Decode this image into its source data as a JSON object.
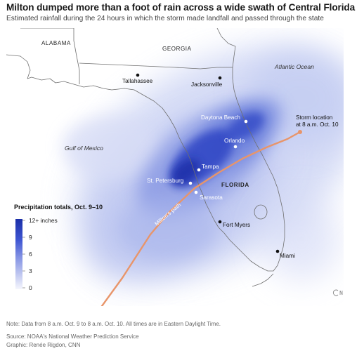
{
  "header": {
    "title": "Milton dumped more than a foot of rain across a wide swath of Central Florida",
    "subtitle": "Estimated rainfall during the 24 hours in which the storm made landfall and passed through the state"
  },
  "map_labels": {
    "states": [
      "ALABAMA",
      "GEORGIA",
      "FLORIDA"
    ],
    "water": [
      "Atlantic Ocean",
      "Gulf of Mexico"
    ],
    "cities": [
      "Tallahassee",
      "Jacksonville",
      "Daytona Beach",
      "Orlando",
      "Tampa",
      "St. Petersburg",
      "Sarasota",
      "Fort Myers",
      "Miami"
    ],
    "storm_path": "Milton's path",
    "storm_location_line1": "Storm location",
    "storm_location_line2": "at 8 a.m. Oct. 10"
  },
  "legend": {
    "title": "Precipitation totals, Oct. 9–10",
    "ticks": [
      "12+ inches",
      "9",
      "6",
      "3",
      "0"
    ],
    "colors": [
      "#f4f5fd",
      "#c9d0f3",
      "#8d9ce6",
      "#4b62d8",
      "#1b2fa8"
    ]
  },
  "colors": {
    "rain_core": "#1d2fb3",
    "path": "#e8956a",
    "land_outline": "#6f6f6f",
    "water": "#ffffff"
  },
  "footer": {
    "note": "Note: Data from 8 a.m. Oct. 9 to 8 a.m. Oct. 10. All times are in Eastern Daylight Time.",
    "source": "Source: NOAA's National Weather Prediction Service",
    "credit": "Graphic: Renée Rigdon, CNN"
  },
  "logo": "cnn-logo"
}
